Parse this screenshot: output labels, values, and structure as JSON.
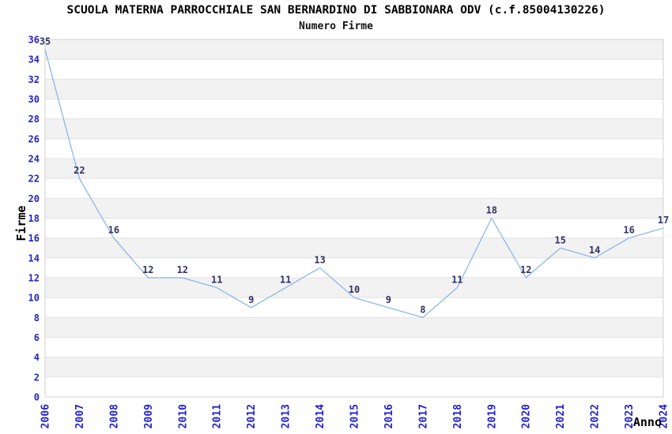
{
  "chart_data": {
    "type": "line",
    "title": "SCUOLA MATERNA PARROCCHIALE SAN BERNARDINO DI SABBIONARA ODV (c.f.85004130226)",
    "subtitle": "Numero Firme",
    "xlabel": "Anno",
    "ylabel": "Firme",
    "x": [
      2006,
      2007,
      2008,
      2009,
      2010,
      2011,
      2012,
      2013,
      2014,
      2015,
      2016,
      2017,
      2018,
      2019,
      2020,
      2021,
      2022,
      2023,
      2024
    ],
    "values": [
      35,
      22,
      16,
      12,
      12,
      11,
      9,
      11,
      13,
      10,
      9,
      8,
      11,
      18,
      12,
      15,
      14,
      16,
      17
    ],
    "ylim": [
      0,
      36
    ],
    "ytick_step": 2,
    "grid": true,
    "legend": false,
    "data_labels_visible": true,
    "x_labels_rotated": true,
    "colors": {
      "line": "#85b2e8",
      "tick_labels": "#2222cc",
      "data_labels": "#333366",
      "band": "#f2f2f2",
      "grid": "#e2e2e2",
      "border": "#d0d0d0",
      "title": "#000000"
    }
  }
}
